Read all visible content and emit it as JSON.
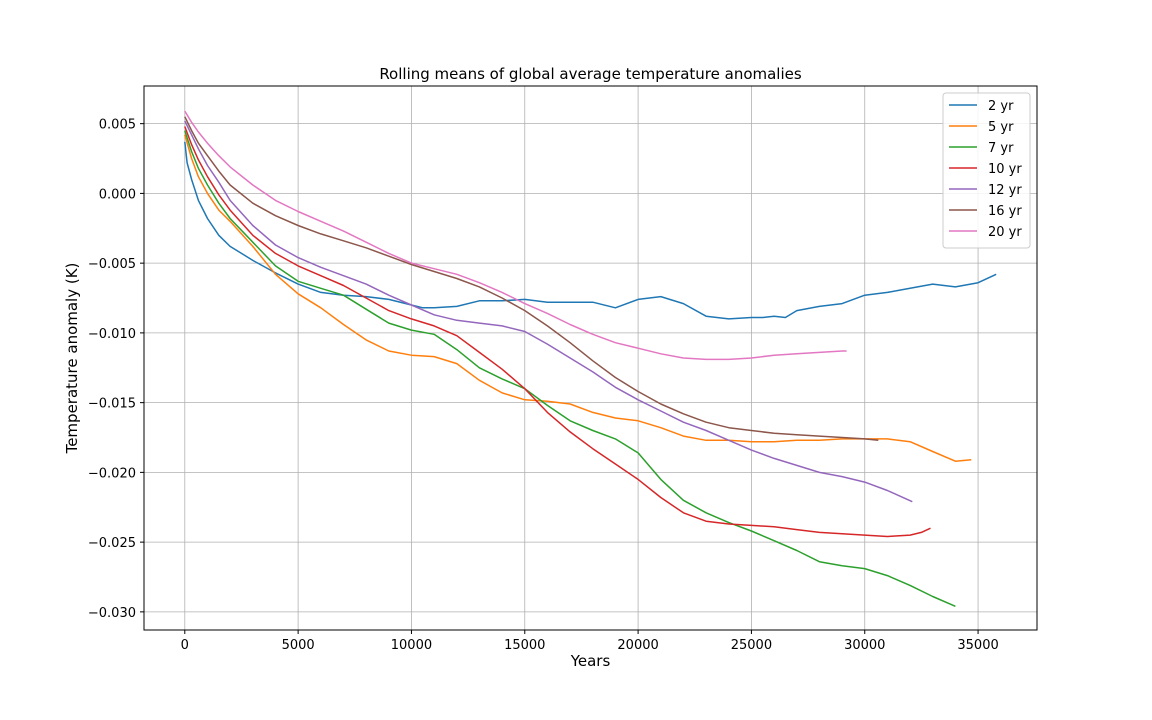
{
  "chart_data": {
    "type": "line",
    "title": "Rolling means of global average temperature anomalies",
    "xlabel": "Years",
    "ylabel": "Temperature anomaly (K)",
    "xlim": [
      -1800,
      37600
    ],
    "ylim": [
      -0.0313,
      0.0077
    ],
    "xticks": [
      0,
      5000,
      10000,
      15000,
      20000,
      25000,
      30000,
      35000
    ],
    "xtick_labels": [
      "0",
      "5000",
      "10000",
      "15000",
      "20000",
      "25000",
      "30000",
      "35000"
    ],
    "yticks": [
      0.005,
      0.0,
      -0.005,
      -0.01,
      -0.015,
      -0.02,
      -0.025,
      -0.03
    ],
    "ytick_labels": [
      "0.005",
      "0.000",
      "−0.005",
      "−0.010",
      "−0.015",
      "−0.020",
      "−0.025",
      "−0.030"
    ],
    "grid": true,
    "legend_position": "top-right",
    "series": [
      {
        "name": "2 yr",
        "color": "#1f77b4",
        "points": [
          [
            0,
            0.0037
          ],
          [
            100,
            0.0022
          ],
          [
            300,
            0.001
          ],
          [
            600,
            -0.0005
          ],
          [
            1000,
            -0.0018
          ],
          [
            1500,
            -0.003
          ],
          [
            2000,
            -0.0038
          ],
          [
            2500,
            -0.0043
          ],
          [
            3000,
            -0.0048
          ],
          [
            4000,
            -0.0057
          ],
          [
            5000,
            -0.0065
          ],
          [
            6000,
            -0.0071
          ],
          [
            7000,
            -0.0073
          ],
          [
            8000,
            -0.0074
          ],
          [
            9000,
            -0.0076
          ],
          [
            10000,
            -0.008
          ],
          [
            10500,
            -0.0082
          ],
          [
            11000,
            -0.0082
          ],
          [
            12000,
            -0.0081
          ],
          [
            13000,
            -0.0077
          ],
          [
            14000,
            -0.0077
          ],
          [
            15000,
            -0.0076
          ],
          [
            16000,
            -0.0078
          ],
          [
            17000,
            -0.0078
          ],
          [
            18000,
            -0.0078
          ],
          [
            19000,
            -0.0082
          ],
          [
            20000,
            -0.0076
          ],
          [
            21000,
            -0.0074
          ],
          [
            22000,
            -0.0079
          ],
          [
            23000,
            -0.0088
          ],
          [
            24000,
            -0.009
          ],
          [
            25000,
            -0.0089
          ],
          [
            25500,
            -0.0089
          ],
          [
            26000,
            -0.0088
          ],
          [
            26500,
            -0.0089
          ],
          [
            27000,
            -0.0084
          ],
          [
            28000,
            -0.0081
          ],
          [
            29000,
            -0.0079
          ],
          [
            30000,
            -0.0073
          ],
          [
            31000,
            -0.0071
          ],
          [
            32000,
            -0.0068
          ],
          [
            33000,
            -0.0065
          ],
          [
            34000,
            -0.0067
          ],
          [
            35000,
            -0.0064
          ],
          [
            35800,
            -0.0058
          ]
        ]
      },
      {
        "name": "5 yr",
        "color": "#ff7f0e",
        "points": [
          [
            0,
            0.0042
          ],
          [
            300,
            0.0025
          ],
          [
            600,
            0.0012
          ],
          [
            1000,
            0.0
          ],
          [
            1500,
            -0.0012
          ],
          [
            2000,
            -0.002
          ],
          [
            3000,
            -0.0038
          ],
          [
            4000,
            -0.0058
          ],
          [
            5000,
            -0.0072
          ],
          [
            6000,
            -0.0082
          ],
          [
            7000,
            -0.0094
          ],
          [
            8000,
            -0.0105
          ],
          [
            9000,
            -0.0113
          ],
          [
            10000,
            -0.0116
          ],
          [
            11000,
            -0.0117
          ],
          [
            12000,
            -0.0122
          ],
          [
            13000,
            -0.0134
          ],
          [
            14000,
            -0.0143
          ],
          [
            15000,
            -0.0148
          ],
          [
            16000,
            -0.0149
          ],
          [
            17000,
            -0.0151
          ],
          [
            18000,
            -0.0157
          ],
          [
            19000,
            -0.0161
          ],
          [
            20000,
            -0.0163
          ],
          [
            21000,
            -0.0168
          ],
          [
            22000,
            -0.0174
          ],
          [
            23000,
            -0.0177
          ],
          [
            24000,
            -0.0177
          ],
          [
            25000,
            -0.0178
          ],
          [
            26000,
            -0.0178
          ],
          [
            27000,
            -0.0177
          ],
          [
            28000,
            -0.0177
          ],
          [
            29000,
            -0.0176
          ],
          [
            30000,
            -0.0176
          ],
          [
            31000,
            -0.0176
          ],
          [
            32000,
            -0.0178
          ],
          [
            33000,
            -0.0185
          ],
          [
            34000,
            -0.0192
          ],
          [
            34700,
            -0.0191
          ]
        ]
      },
      {
        "name": "7 yr",
        "color": "#2ca02c",
        "points": [
          [
            0,
            0.0045
          ],
          [
            300,
            0.003
          ],
          [
            600,
            0.0018
          ],
          [
            1000,
            0.0006
          ],
          [
            1500,
            -0.0007
          ],
          [
            2000,
            -0.0018
          ],
          [
            3000,
            -0.0035
          ],
          [
            4000,
            -0.0052
          ],
          [
            5000,
            -0.0063
          ],
          [
            6000,
            -0.0068
          ],
          [
            7000,
            -0.0073
          ],
          [
            8000,
            -0.0083
          ],
          [
            9000,
            -0.0093
          ],
          [
            10000,
            -0.0098
          ],
          [
            11000,
            -0.0101
          ],
          [
            12000,
            -0.0112
          ],
          [
            13000,
            -0.0125
          ],
          [
            14000,
            -0.0133
          ],
          [
            15000,
            -0.014
          ],
          [
            16000,
            -0.0152
          ],
          [
            17000,
            -0.0163
          ],
          [
            18000,
            -0.017
          ],
          [
            19000,
            -0.0176
          ],
          [
            20000,
            -0.0186
          ],
          [
            21000,
            -0.0205
          ],
          [
            22000,
            -0.022
          ],
          [
            23000,
            -0.0229
          ],
          [
            24000,
            -0.0236
          ],
          [
            25000,
            -0.0242
          ],
          [
            26000,
            -0.0249
          ],
          [
            27000,
            -0.0256
          ],
          [
            28000,
            -0.0264
          ],
          [
            29000,
            -0.0267
          ],
          [
            30000,
            -0.0269
          ],
          [
            31000,
            -0.0274
          ],
          [
            32000,
            -0.0281
          ],
          [
            33000,
            -0.0289
          ],
          [
            34000,
            -0.0296
          ]
        ]
      },
      {
        "name": "10 yr",
        "color": "#d62728",
        "points": [
          [
            0,
            0.0048
          ],
          [
            300,
            0.0035
          ],
          [
            600,
            0.0024
          ],
          [
            1000,
            0.0012
          ],
          [
            1500,
            -0.0001
          ],
          [
            2000,
            -0.0012
          ],
          [
            3000,
            -0.003
          ],
          [
            4000,
            -0.0043
          ],
          [
            5000,
            -0.0052
          ],
          [
            6000,
            -0.0059
          ],
          [
            7000,
            -0.0066
          ],
          [
            8000,
            -0.0075
          ],
          [
            9000,
            -0.0084
          ],
          [
            10000,
            -0.009
          ],
          [
            11000,
            -0.0095
          ],
          [
            12000,
            -0.0102
          ],
          [
            13000,
            -0.0114
          ],
          [
            14000,
            -0.0126
          ],
          [
            15000,
            -0.014
          ],
          [
            16000,
            -0.0157
          ],
          [
            17000,
            -0.0171
          ],
          [
            18000,
            -0.0183
          ],
          [
            19000,
            -0.0194
          ],
          [
            20000,
            -0.0205
          ],
          [
            21000,
            -0.0218
          ],
          [
            22000,
            -0.0229
          ],
          [
            23000,
            -0.0235
          ],
          [
            24000,
            -0.0237
          ],
          [
            25000,
            -0.0238
          ],
          [
            26000,
            -0.0239
          ],
          [
            27000,
            -0.0241
          ],
          [
            28000,
            -0.0243
          ],
          [
            29000,
            -0.0244
          ],
          [
            30000,
            -0.0245
          ],
          [
            31000,
            -0.0246
          ],
          [
            32000,
            -0.0245
          ],
          [
            32500,
            -0.0243
          ],
          [
            32900,
            -0.024
          ]
        ]
      },
      {
        "name": "12 yr",
        "color": "#9467bd",
        "points": [
          [
            0,
            0.0052
          ],
          [
            300,
            0.0042
          ],
          [
            600,
            0.0032
          ],
          [
            1000,
            0.002
          ],
          [
            1500,
            0.0008
          ],
          [
            2000,
            -0.0005
          ],
          [
            3000,
            -0.0023
          ],
          [
            4000,
            -0.0037
          ],
          [
            5000,
            -0.0046
          ],
          [
            6000,
            -0.0053
          ],
          [
            7000,
            -0.0059
          ],
          [
            8000,
            -0.0065
          ],
          [
            9000,
            -0.0073
          ],
          [
            10000,
            -0.008
          ],
          [
            11000,
            -0.0087
          ],
          [
            12000,
            -0.0091
          ],
          [
            13000,
            -0.0093
          ],
          [
            14000,
            -0.0095
          ],
          [
            15000,
            -0.0099
          ],
          [
            16000,
            -0.0108
          ],
          [
            17000,
            -0.0118
          ],
          [
            18000,
            -0.0128
          ],
          [
            19000,
            -0.0139
          ],
          [
            20000,
            -0.0148
          ],
          [
            21000,
            -0.0156
          ],
          [
            22000,
            -0.0164
          ],
          [
            23000,
            -0.017
          ],
          [
            24000,
            -0.0177
          ],
          [
            25000,
            -0.0184
          ],
          [
            26000,
            -0.019
          ],
          [
            27000,
            -0.0195
          ],
          [
            28000,
            -0.02
          ],
          [
            29000,
            -0.0203
          ],
          [
            30000,
            -0.0207
          ],
          [
            31000,
            -0.0213
          ],
          [
            32100,
            -0.0221
          ]
        ]
      },
      {
        "name": "16 yr",
        "color": "#8c564b",
        "points": [
          [
            0,
            0.0055
          ],
          [
            300,
            0.0045
          ],
          [
            600,
            0.0036
          ],
          [
            1000,
            0.0027
          ],
          [
            1500,
            0.0016
          ],
          [
            2000,
            0.0006
          ],
          [
            3000,
            -0.0007
          ],
          [
            4000,
            -0.0016
          ],
          [
            5000,
            -0.0023
          ],
          [
            6000,
            -0.0029
          ],
          [
            7000,
            -0.0034
          ],
          [
            8000,
            -0.0039
          ],
          [
            9000,
            -0.0045
          ],
          [
            10000,
            -0.0051
          ],
          [
            11000,
            -0.0056
          ],
          [
            12000,
            -0.0061
          ],
          [
            13000,
            -0.0067
          ],
          [
            14000,
            -0.0075
          ],
          [
            15000,
            -0.0084
          ],
          [
            16000,
            -0.0095
          ],
          [
            17000,
            -0.0107
          ],
          [
            18000,
            -0.012
          ],
          [
            19000,
            -0.0132
          ],
          [
            20000,
            -0.0142
          ],
          [
            21000,
            -0.0151
          ],
          [
            22000,
            -0.0158
          ],
          [
            23000,
            -0.0164
          ],
          [
            24000,
            -0.0168
          ],
          [
            25000,
            -0.017
          ],
          [
            26000,
            -0.0172
          ],
          [
            27000,
            -0.0173
          ],
          [
            28000,
            -0.0174
          ],
          [
            29000,
            -0.0175
          ],
          [
            30000,
            -0.0176
          ],
          [
            30600,
            -0.0177
          ]
        ]
      },
      {
        "name": "20 yr",
        "color": "#e377c2",
        "points": [
          [
            0,
            0.0059
          ],
          [
            300,
            0.0051
          ],
          [
            600,
            0.0044
          ],
          [
            1000,
            0.0036
          ],
          [
            1500,
            0.0027
          ],
          [
            2000,
            0.0019
          ],
          [
            3000,
            0.0006
          ],
          [
            4000,
            -0.0005
          ],
          [
            5000,
            -0.0013
          ],
          [
            6000,
            -0.002
          ],
          [
            7000,
            -0.0027
          ],
          [
            8000,
            -0.0035
          ],
          [
            9000,
            -0.0043
          ],
          [
            10000,
            -0.005
          ],
          [
            11000,
            -0.0054
          ],
          [
            12000,
            -0.0058
          ],
          [
            13000,
            -0.0064
          ],
          [
            14000,
            -0.0071
          ],
          [
            15000,
            -0.0079
          ],
          [
            16000,
            -0.0086
          ],
          [
            17000,
            -0.0094
          ],
          [
            18000,
            -0.0101
          ],
          [
            19000,
            -0.0107
          ],
          [
            20000,
            -0.0111
          ],
          [
            21000,
            -0.0115
          ],
          [
            22000,
            -0.0118
          ],
          [
            23000,
            -0.0119
          ],
          [
            24000,
            -0.0119
          ],
          [
            25000,
            -0.0118
          ],
          [
            26000,
            -0.0116
          ],
          [
            27000,
            -0.0115
          ],
          [
            28000,
            -0.0114
          ],
          [
            29000,
            -0.0113
          ],
          [
            29200,
            -0.0113
          ]
        ]
      }
    ]
  }
}
